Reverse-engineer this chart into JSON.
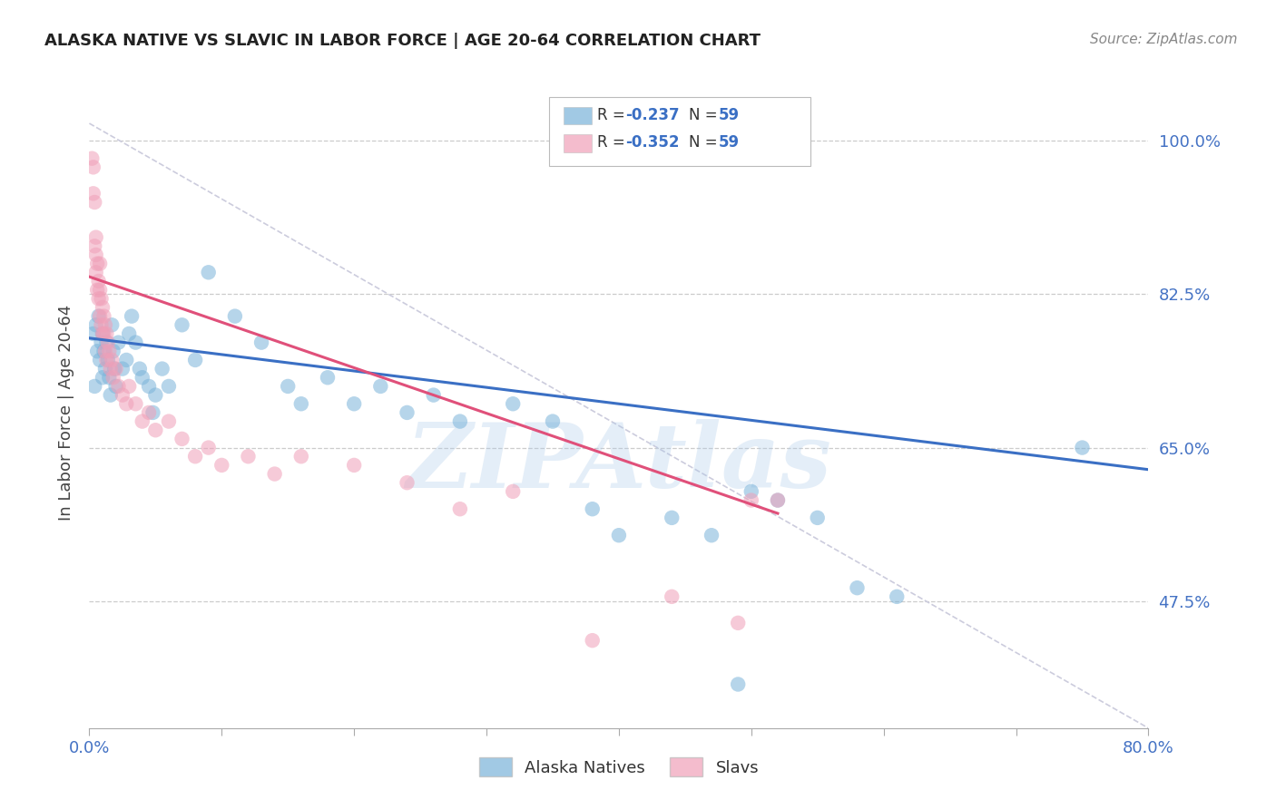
{
  "title": "ALASKA NATIVE VS SLAVIC IN LABOR FORCE | AGE 20-64 CORRELATION CHART",
  "source": "Source: ZipAtlas.com",
  "ylabel": "In Labor Force | Age 20-64",
  "ytick_labels": [
    "100.0%",
    "82.5%",
    "65.0%",
    "47.5%"
  ],
  "ytick_values": [
    1.0,
    0.825,
    0.65,
    0.475
  ],
  "xlim": [
    0.0,
    0.8
  ],
  "ylim": [
    0.33,
    1.05
  ],
  "watermark": "ZIPAtlas",
  "watermark_color": "#a8c8e8",
  "background_color": "#ffffff",
  "blue_color": "#7ab3d9",
  "pink_color": "#f0a0b8",
  "blue_line_color": "#3a6fc4",
  "pink_line_color": "#e0507a",
  "dash_line_color": "#ccccdd",
  "blue_line": {
    "x0": 0.0,
    "y0": 0.775,
    "x1": 0.8,
    "y1": 0.625
  },
  "pink_line": {
    "x0": 0.0,
    "y0": 0.845,
    "x1": 0.52,
    "y1": 0.575
  },
  "dash_line": {
    "x0": 0.0,
    "y0": 1.02,
    "x1": 0.8,
    "y1": 0.33
  },
  "blue_scatter": [
    [
      0.003,
      0.78
    ],
    [
      0.004,
      0.72
    ],
    [
      0.005,
      0.79
    ],
    [
      0.006,
      0.76
    ],
    [
      0.007,
      0.8
    ],
    [
      0.008,
      0.75
    ],
    [
      0.009,
      0.77
    ],
    [
      0.01,
      0.73
    ],
    [
      0.01,
      0.78
    ],
    [
      0.011,
      0.76
    ],
    [
      0.012,
      0.74
    ],
    [
      0.013,
      0.77
    ],
    [
      0.014,
      0.75
    ],
    [
      0.015,
      0.73
    ],
    [
      0.016,
      0.71
    ],
    [
      0.017,
      0.79
    ],
    [
      0.018,
      0.76
    ],
    [
      0.019,
      0.74
    ],
    [
      0.02,
      0.72
    ],
    [
      0.022,
      0.77
    ],
    [
      0.025,
      0.74
    ],
    [
      0.028,
      0.75
    ],
    [
      0.03,
      0.78
    ],
    [
      0.032,
      0.8
    ],
    [
      0.035,
      0.77
    ],
    [
      0.038,
      0.74
    ],
    [
      0.04,
      0.73
    ],
    [
      0.045,
      0.72
    ],
    [
      0.048,
      0.69
    ],
    [
      0.05,
      0.71
    ],
    [
      0.055,
      0.74
    ],
    [
      0.06,
      0.72
    ],
    [
      0.07,
      0.79
    ],
    [
      0.08,
      0.75
    ],
    [
      0.09,
      0.85
    ],
    [
      0.11,
      0.8
    ],
    [
      0.13,
      0.77
    ],
    [
      0.15,
      0.72
    ],
    [
      0.16,
      0.7
    ],
    [
      0.18,
      0.73
    ],
    [
      0.2,
      0.7
    ],
    [
      0.22,
      0.72
    ],
    [
      0.24,
      0.69
    ],
    [
      0.26,
      0.71
    ],
    [
      0.28,
      0.68
    ],
    [
      0.32,
      0.7
    ],
    [
      0.35,
      0.68
    ],
    [
      0.38,
      0.58
    ],
    [
      0.4,
      0.55
    ],
    [
      0.44,
      0.57
    ],
    [
      0.47,
      0.55
    ],
    [
      0.49,
      0.38
    ],
    [
      0.5,
      0.6
    ],
    [
      0.52,
      0.59
    ],
    [
      0.55,
      0.57
    ],
    [
      0.58,
      0.49
    ],
    [
      0.61,
      0.48
    ],
    [
      0.75,
      0.65
    ]
  ],
  "pink_scatter": [
    [
      0.002,
      0.98
    ],
    [
      0.003,
      0.97
    ],
    [
      0.003,
      0.94
    ],
    [
      0.004,
      0.88
    ],
    [
      0.004,
      0.93
    ],
    [
      0.005,
      0.89
    ],
    [
      0.005,
      0.85
    ],
    [
      0.005,
      0.87
    ],
    [
      0.006,
      0.86
    ],
    [
      0.006,
      0.83
    ],
    [
      0.007,
      0.84
    ],
    [
      0.007,
      0.82
    ],
    [
      0.008,
      0.83
    ],
    [
      0.008,
      0.8
    ],
    [
      0.008,
      0.86
    ],
    [
      0.009,
      0.82
    ],
    [
      0.009,
      0.79
    ],
    [
      0.01,
      0.81
    ],
    [
      0.01,
      0.78
    ],
    [
      0.011,
      0.8
    ],
    [
      0.011,
      0.78
    ],
    [
      0.012,
      0.79
    ],
    [
      0.012,
      0.76
    ],
    [
      0.013,
      0.78
    ],
    [
      0.013,
      0.75
    ],
    [
      0.014,
      0.77
    ],
    [
      0.015,
      0.76
    ],
    [
      0.016,
      0.74
    ],
    [
      0.017,
      0.75
    ],
    [
      0.018,
      0.73
    ],
    [
      0.02,
      0.74
    ],
    [
      0.022,
      0.72
    ],
    [
      0.025,
      0.71
    ],
    [
      0.028,
      0.7
    ],
    [
      0.03,
      0.72
    ],
    [
      0.035,
      0.7
    ],
    [
      0.04,
      0.68
    ],
    [
      0.045,
      0.69
    ],
    [
      0.05,
      0.67
    ],
    [
      0.06,
      0.68
    ],
    [
      0.07,
      0.66
    ],
    [
      0.08,
      0.64
    ],
    [
      0.09,
      0.65
    ],
    [
      0.1,
      0.63
    ],
    [
      0.12,
      0.64
    ],
    [
      0.14,
      0.62
    ],
    [
      0.16,
      0.64
    ],
    [
      0.2,
      0.63
    ],
    [
      0.24,
      0.61
    ],
    [
      0.28,
      0.58
    ],
    [
      0.32,
      0.6
    ],
    [
      0.38,
      0.43
    ],
    [
      0.44,
      0.48
    ],
    [
      0.49,
      0.45
    ],
    [
      0.5,
      0.59
    ],
    [
      0.52,
      0.59
    ]
  ]
}
